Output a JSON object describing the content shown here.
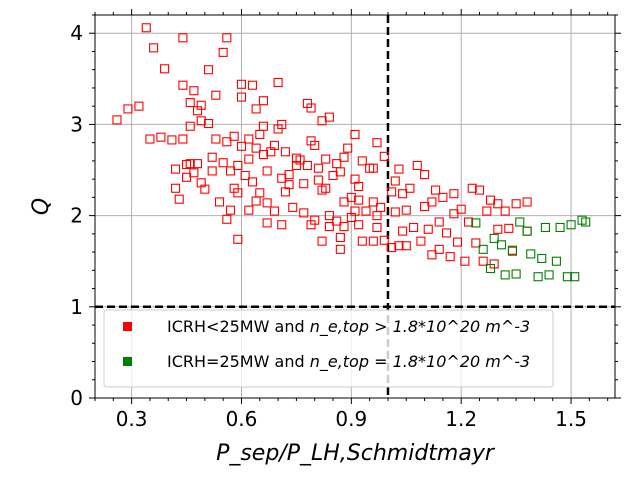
{
  "chart_data": {
    "type": "scatter",
    "xlabel": "P_sep/P_LH,Schmidtmayr",
    "ylabel": "Q",
    "xlim": [
      0.2,
      1.62
    ],
    "ylim": [
      0,
      4.2
    ],
    "x_ticks": [
      0.3,
      0.6,
      0.9,
      1.2,
      1.5
    ],
    "x_tick_labels": [
      "0.3",
      "0.6",
      "0.9",
      "1.2",
      "1.5"
    ],
    "y_ticks": [
      0,
      1,
      2,
      3,
      4
    ],
    "y_tick_labels": [
      "0",
      "1",
      "2",
      "3",
      "4"
    ],
    "grid": true,
    "reference_lines": [
      {
        "orientation": "vertical",
        "value": 1.0,
        "style": "dashed",
        "color": "#000000"
      },
      {
        "orientation": "horizontal",
        "value": 1.0,
        "style": "dashed",
        "color": "#000000"
      }
    ],
    "legend_placement": "bottom-left",
    "series": [
      {
        "name": "ICRH<25MW and n_e,top > 1.8*10^20 m^-3",
        "label_prefix": "ICRH<25MW and ",
        "label_math": "n_e,top > 1.8*10^20 m^-3",
        "color": "#ff0000",
        "marker": "open-square",
        "points": [
          [
            0.26,
            3.05
          ],
          [
            0.29,
            3.17
          ],
          [
            0.32,
            3.2
          ],
          [
            0.34,
            4.06
          ],
          [
            0.35,
            2.84
          ],
          [
            0.36,
            3.84
          ],
          [
            0.38,
            2.86
          ],
          [
            0.39,
            3.61
          ],
          [
            0.41,
            2.83
          ],
          [
            0.42,
            2.3
          ],
          [
            0.42,
            2.51
          ],
          [
            0.43,
            2.18
          ],
          [
            0.44,
            2.84
          ],
          [
            0.44,
            3.43
          ],
          [
            0.44,
            3.95
          ],
          [
            0.45,
            2.42
          ],
          [
            0.45,
            2.56
          ],
          [
            0.46,
            3.24
          ],
          [
            0.46,
            2.57
          ],
          [
            0.46,
            2.98
          ],
          [
            0.47,
            2.47
          ],
          [
            0.47,
            3.37
          ],
          [
            0.48,
            2.57
          ],
          [
            0.48,
            3.15
          ],
          [
            0.49,
            2.36
          ],
          [
            0.49,
            3.21
          ],
          [
            0.49,
            3.04
          ],
          [
            0.5,
            2.29
          ],
          [
            0.51,
            3.6
          ],
          [
            0.51,
            3.01
          ],
          [
            0.52,
            2.49
          ],
          [
            0.52,
            2.64
          ],
          [
            0.53,
            3.32
          ],
          [
            0.53,
            2.84
          ],
          [
            0.54,
            2.15
          ],
          [
            0.55,
            3.79
          ],
          [
            0.55,
            2.58
          ],
          [
            0.56,
            2.81
          ],
          [
            0.56,
            1.96
          ],
          [
            0.56,
            3.95
          ],
          [
            0.57,
            2.06
          ],
          [
            0.57,
            2.49
          ],
          [
            0.58,
            2.87
          ],
          [
            0.58,
            2.3
          ],
          [
            0.59,
            1.74
          ],
          [
            0.59,
            2.25
          ],
          [
            0.59,
            2.55
          ],
          [
            0.6,
            3.3
          ],
          [
            0.6,
            2.76
          ],
          [
            0.6,
            3.44
          ],
          [
            0.61,
            2.44
          ],
          [
            0.62,
            2.06
          ],
          [
            0.62,
            2.84
          ],
          [
            0.62,
            2.62
          ],
          [
            0.63,
            3.43
          ],
          [
            0.63,
            2.37
          ],
          [
            0.64,
            2.16
          ],
          [
            0.64,
            2.74
          ],
          [
            0.64,
            3.17
          ],
          [
            0.65,
            2.89
          ],
          [
            0.65,
            2.25
          ],
          [
            0.66,
            2.67
          ],
          [
            0.66,
            2.98
          ],
          [
            0.66,
            3.26
          ],
          [
            0.67,
            1.92
          ],
          [
            0.67,
            2.49
          ],
          [
            0.67,
            2.14
          ],
          [
            0.68,
            2.7
          ],
          [
            0.69,
            2.05
          ],
          [
            0.69,
            2.77
          ],
          [
            0.7,
            3.46
          ],
          [
            0.7,
            2.95
          ],
          [
            0.71,
            3.0
          ],
          [
            0.71,
            1.9
          ],
          [
            0.71,
            2.41
          ],
          [
            0.72,
            2.26
          ],
          [
            0.72,
            2.7
          ],
          [
            0.73,
            2.34
          ],
          [
            0.73,
            2.45
          ],
          [
            0.74,
            2.09
          ],
          [
            0.75,
            2.55
          ],
          [
            0.75,
            2.63
          ],
          [
            0.76,
            2.61
          ],
          [
            0.77,
            2.35
          ],
          [
            0.77,
            2.03
          ],
          [
            0.78,
            3.23
          ],
          [
            0.78,
            2.55
          ],
          [
            0.79,
            1.9
          ],
          [
            0.79,
            2.82
          ],
          [
            0.79,
            3.18
          ],
          [
            0.8,
            2.77
          ],
          [
            0.8,
            1.95
          ],
          [
            0.81,
            2.52
          ],
          [
            0.81,
            2.39
          ],
          [
            0.82,
            1.72
          ],
          [
            0.82,
            3.04
          ],
          [
            0.82,
            2.28
          ],
          [
            0.83,
            2.3
          ],
          [
            0.83,
            2.62
          ],
          [
            0.84,
            1.88
          ],
          [
            0.84,
            3.08
          ],
          [
            0.84,
            2.0
          ],
          [
            0.85,
            2.44
          ],
          [
            0.86,
            1.94
          ],
          [
            0.86,
            2.57
          ],
          [
            0.87,
            1.76
          ],
          [
            0.87,
            2.48
          ],
          [
            0.87,
            1.63
          ],
          [
            0.88,
            2.15
          ],
          [
            0.88,
            1.88
          ],
          [
            0.88,
            2.64
          ],
          [
            0.89,
            2.74
          ],
          [
            0.9,
            2.2
          ],
          [
            0.9,
            1.98
          ],
          [
            0.91,
            2.89
          ],
          [
            0.91,
            2.05
          ],
          [
            0.91,
            2.4
          ],
          [
            0.92,
            1.9
          ],
          [
            0.92,
            2.17
          ],
          [
            0.92,
            2.32
          ],
          [
            0.93,
            1.72
          ],
          [
            0.93,
            2.6
          ],
          [
            0.94,
            2.05
          ],
          [
            0.95,
            2.52
          ],
          [
            0.96,
            1.72
          ],
          [
            0.96,
            2.15
          ],
          [
            0.96,
            2.52
          ],
          [
            0.97,
            2.8
          ],
          [
            0.97,
            1.87
          ],
          [
            0.97,
            2.0
          ],
          [
            0.98,
            2.09
          ],
          [
            0.99,
            1.73
          ],
          [
            0.99,
            2.65
          ],
          [
            1.01,
            2.26
          ],
          [
            1.01,
            1.65
          ],
          [
            1.02,
            2.38
          ],
          [
            1.02,
            2.04
          ],
          [
            1.03,
            2.51
          ],
          [
            1.03,
            1.67
          ],
          [
            1.04,
            2.24
          ],
          [
            1.04,
            1.83
          ],
          [
            1.05,
            1.67
          ],
          [
            1.05,
            2.06
          ],
          [
            1.06,
            2.3
          ],
          [
            1.07,
            1.87
          ],
          [
            1.08,
            2.55
          ],
          [
            1.09,
            1.72
          ],
          [
            1.1,
            2.1
          ],
          [
            1.1,
            2.45
          ],
          [
            1.11,
            1.85
          ],
          [
            1.12,
            1.57
          ],
          [
            1.12,
            2.15
          ],
          [
            1.13,
            2.28
          ],
          [
            1.14,
            1.93
          ],
          [
            1.14,
            1.63
          ],
          [
            1.15,
            2.2
          ],
          [
            1.16,
            1.81
          ],
          [
            1.17,
            1.55
          ],
          [
            1.18,
            2.02
          ],
          [
            1.18,
            2.24
          ],
          [
            1.19,
            1.71
          ],
          [
            1.2,
            2.07
          ],
          [
            1.21,
            1.5
          ],
          [
            1.22,
            1.93
          ],
          [
            1.23,
            2.3
          ],
          [
            1.24,
            1.7
          ],
          [
            1.25,
            2.28
          ],
          [
            1.26,
            1.5
          ],
          [
            1.27,
            2.05
          ],
          [
            1.28,
            2.17
          ],
          [
            1.29,
            1.47
          ],
          [
            1.3,
            2.13
          ],
          [
            1.3,
            1.85
          ],
          [
            1.32,
            2.05
          ],
          [
            1.33,
            1.86
          ],
          [
            1.34,
            1.61
          ],
          [
            1.35,
            2.13
          ],
          [
            1.38,
            1.83
          ],
          [
            1.38,
            2.15
          ]
        ]
      },
      {
        "name": "ICRH=25MW and n_e,top = 1.8*10^20 m^-3",
        "label_prefix": "ICRH=25MW and ",
        "label_math": "n_e,top = 1.8*10^20 m^-3",
        "color": "#008000",
        "marker": "open-square",
        "points": [
          [
            1.24,
            1.92
          ],
          [
            1.26,
            1.63
          ],
          [
            1.28,
            1.42
          ],
          [
            1.29,
            1.75
          ],
          [
            1.31,
            1.68
          ],
          [
            1.32,
            1.35
          ],
          [
            1.34,
            1.62
          ],
          [
            1.35,
            1.36
          ],
          [
            1.36,
            1.93
          ],
          [
            1.38,
            1.83
          ],
          [
            1.39,
            1.58
          ],
          [
            1.41,
            1.33
          ],
          [
            1.42,
            1.53
          ],
          [
            1.43,
            1.87
          ],
          [
            1.44,
            1.35
          ],
          [
            1.46,
            1.5
          ],
          [
            1.47,
            1.87
          ],
          [
            1.49,
            1.33
          ],
          [
            1.5,
            1.9
          ],
          [
            1.51,
            1.33
          ],
          [
            1.53,
            1.95
          ],
          [
            1.54,
            1.93
          ]
        ]
      }
    ]
  }
}
